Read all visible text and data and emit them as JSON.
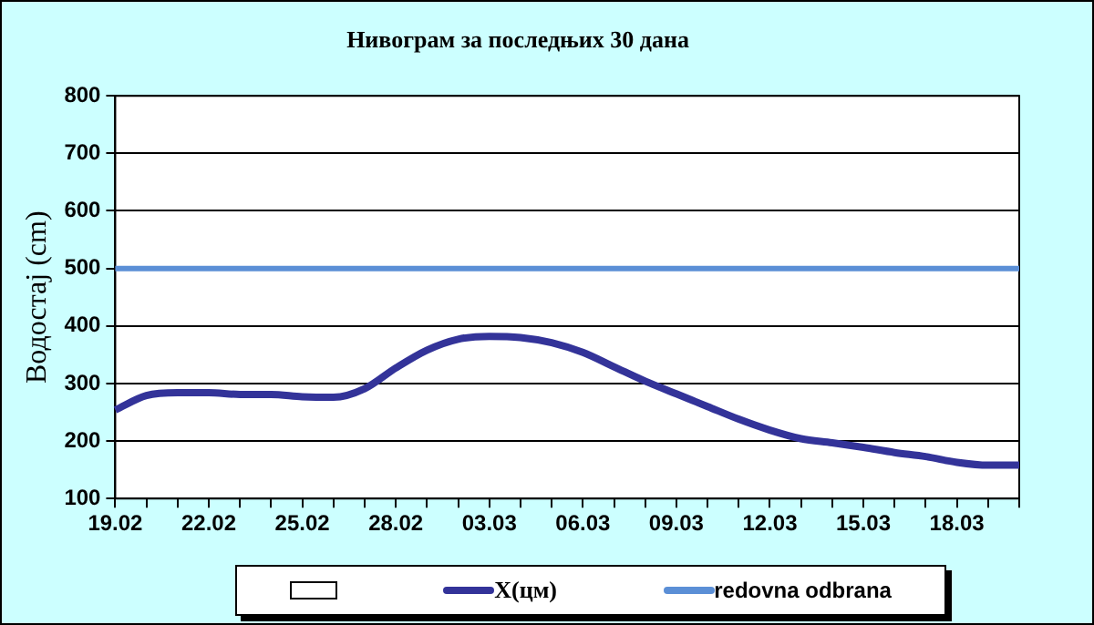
{
  "chart_data": {
    "type": "line",
    "title": "Нивограм за последњих 30 дана",
    "ylabel": "Водостај (cm)",
    "categories": [
      "19.02",
      null,
      null,
      "22.02",
      null,
      null,
      "25.02",
      null,
      null,
      "28.02",
      null,
      null,
      "03.03",
      null,
      null,
      "06.03",
      null,
      null,
      "09.03",
      null,
      null,
      "12.03",
      null,
      null,
      "15.03",
      null,
      null,
      "18.03",
      null,
      null
    ],
    "series": [
      {
        "name": "X(цм)",
        "color": "#333399",
        "values": [
          254,
          279,
          284,
          284,
          281,
          281,
          277,
          276,
          291,
          327,
          358,
          377,
          382,
          380,
          371,
          354,
          329,
          304,
          282,
          260,
          238,
          219,
          204,
          197,
          189,
          180,
          173,
          163,
          158,
          158
        ]
      }
    ],
    "ref_lines": [
      {
        "axis": "y",
        "value": 500,
        "label": "redovna odbrana",
        "color": "#5b8fd6"
      }
    ],
    "ylim": [
      100,
      800
    ],
    "yticks": [
      100,
      200,
      300,
      400,
      500,
      600,
      700,
      800
    ],
    "grid": "y",
    "legend": "bottom"
  }
}
